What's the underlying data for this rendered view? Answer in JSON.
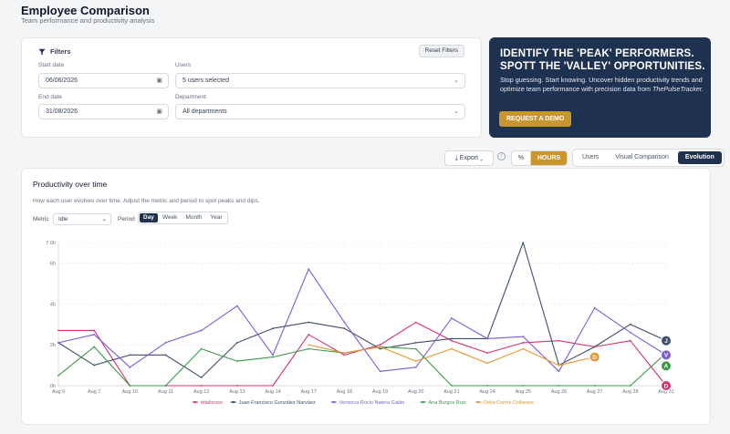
{
  "header": {
    "title": "Employee Comparison",
    "subtitle": "Team performance and productivity analysis"
  },
  "filters": {
    "title": "Filters",
    "reset_label": "Reset Filters",
    "start_date": {
      "label": "Start date",
      "value": "06/06/2026"
    },
    "end_date": {
      "label": "End date",
      "value": "31/08/2026"
    },
    "users": {
      "label": "Users",
      "value": "5 users selected"
    },
    "department": {
      "label": "Department",
      "value": "All departments"
    }
  },
  "promo": {
    "headline_1": "IDENTIFY THE 'PEAK' PERFORMERS.",
    "headline_2": "SPOTT THE 'VALLEY' OPPORTUNITIES.",
    "body": "Stop guessing. Start knowing. Uncover hidden productivity trends and optimize team performance with precision data from ",
    "brand": "ThePulseTracker.",
    "button": "REQUEST A DEMO"
  },
  "toolbar": {
    "export_label": "Export",
    "unit_percent": "%",
    "unit_hours": "HOURS",
    "active_unit": "HOURS",
    "views": [
      "Users",
      "Visual Comparison",
      "Evolution"
    ],
    "active_view": "Evolution"
  },
  "chart_panel": {
    "title": "Productivity over time",
    "description": "How each user evolves over time. Adjust the metric and period to spot peaks and dips.",
    "metric_label": "Metric",
    "metric_value": "Idle",
    "period_label": "Period",
    "periods": [
      "Day",
      "Week",
      "Month",
      "Year"
    ],
    "active_period": "Day"
  },
  "chart_data": {
    "type": "line",
    "x": [
      "Aug 6",
      "Aug 7",
      "Aug 10",
      "Aug 11",
      "Aug 12",
      "Aug 13",
      "Aug 14",
      "Aug 17",
      "Aug 18",
      "Aug 19",
      "Aug 20",
      "Aug 21",
      "Aug 24",
      "Aug 25",
      "Aug 26",
      "Aug 27",
      "Aug 28",
      "Aug 31"
    ],
    "y_ticks": [
      "0h",
      "2h",
      "4h",
      "6h",
      "7.0h"
    ],
    "ylim": [
      0,
      7
    ],
    "grid": true,
    "legend_position": "bottom",
    "series": [
      {
        "name": "ddaloroso",
        "color": "#d6336c",
        "values": [
          2.7,
          2.7,
          0,
          0,
          0,
          0,
          0,
          2.5,
          1.5,
          2.0,
          3.1,
          2.2,
          1.6,
          2.1,
          2.2,
          1.9,
          2.2,
          0
        ]
      },
      {
        "name": "Juan Francisco González Narváez",
        "color": "#3d4f6b",
        "values": [
          2.1,
          1.0,
          1.5,
          1.5,
          0.4,
          2.1,
          2.8,
          3.1,
          2.8,
          1.8,
          2.1,
          2.3,
          2.3,
          7.0,
          1.0,
          1.9,
          3.0,
          2.2
        ]
      },
      {
        "name": "Veronica Rocío Natera Galán",
        "color": "#7c5cd6",
        "values": [
          2.1,
          2.5,
          0.9,
          2.1,
          2.7,
          3.9,
          1.5,
          5.7,
          3.1,
          0.7,
          0.9,
          3.3,
          2.3,
          2.4,
          0.7,
          3.8,
          2.6,
          1.5
        ]
      },
      {
        "name": "Ana Burgos Ruiz",
        "color": "#3a9a4a",
        "values": [
          0.5,
          1.9,
          0,
          0,
          1.8,
          1.2,
          1.4,
          1.8,
          1.6,
          1.9,
          1.8,
          0,
          0,
          0,
          0,
          0,
          0,
          1.6
        ]
      },
      {
        "name": "Delia Cortés Collantes",
        "color": "#e8962e",
        "values": [
          null,
          null,
          null,
          null,
          null,
          null,
          null,
          2.0,
          1.6,
          1.9,
          1.2,
          1.8,
          1.1,
          1.8,
          1.0,
          1.4,
          null,
          null
        ]
      }
    ],
    "end_markers": [
      {
        "series": "Juan Francisco González Narváez",
        "letter": "J"
      },
      {
        "series": "Veronica Rocío Natera Galán",
        "letter": "V"
      },
      {
        "series": "Ana Burgos Ruiz",
        "letter": "A"
      },
      {
        "series": "ddaloroso",
        "letter": "D"
      },
      {
        "series": "Delia Cortés Collantes",
        "letter": "D"
      }
    ]
  }
}
